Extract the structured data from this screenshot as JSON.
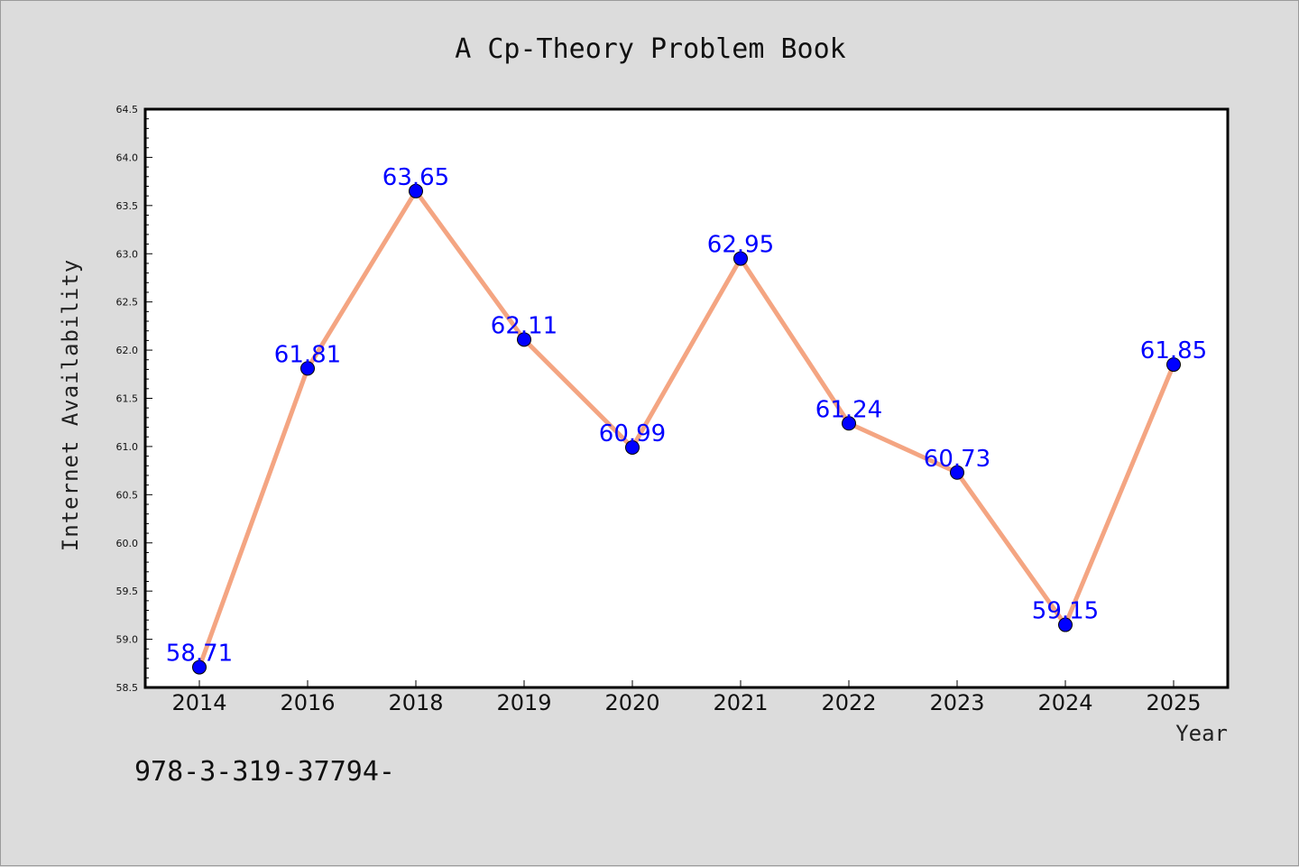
{
  "chart_data": {
    "type": "line",
    "title": "A Cp-Theory Problem Book",
    "xlabel": "Year",
    "ylabel": "Internet Availability",
    "categories": [
      "2014",
      "2016",
      "2018",
      "2019",
      "2020",
      "2021",
      "2022",
      "2023",
      "2024",
      "2025"
    ],
    "series": [
      {
        "values": [
          58.71,
          61.81,
          63.65,
          62.11,
          60.99,
          62.95,
          61.24,
          60.73,
          59.15,
          61.85
        ],
        "line_color": "#f4a582",
        "marker_color": "#0000ff"
      }
    ],
    "data_labels": [
      "58.71",
      "61.81",
      "63.65",
      "62.11",
      "60.99",
      "62.95",
      "61.24",
      "60.73",
      "59.15",
      "61.85"
    ],
    "ylim": [
      58.5,
      64.5
    ],
    "yticks": [
      "58.5",
      "59.0",
      "59.5",
      "60.0",
      "60.5",
      "61.0",
      "61.5",
      "62.0",
      "62.5",
      "63.0",
      "63.5",
      "64.0",
      "64.5"
    ],
    "grid": false,
    "legend": "none",
    "background": "#dcdcdc",
    "plot_background": "#ffffff",
    "label_color": "#0000ff"
  },
  "footnote": "978-3-319-37794-"
}
